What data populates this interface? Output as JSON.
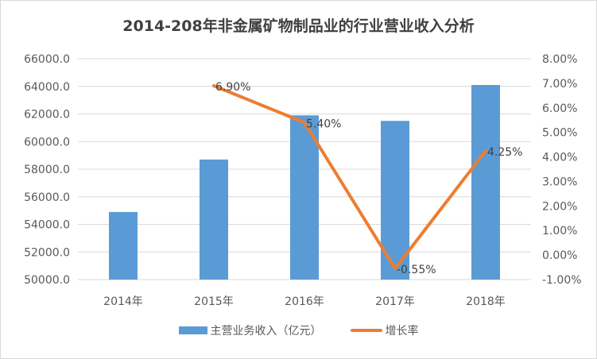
{
  "title": "2014-208年非金属矿物制品业的行业营业收入分析",
  "chart_data": {
    "type": "bar+line",
    "title": "2014-208年非金属矿物制品业的行业营业收入分析",
    "categories": [
      "2014年",
      "2015年",
      "2016年",
      "2017年",
      "2018年"
    ],
    "series": [
      {
        "name": "主营业务收入（亿元）",
        "type": "bar",
        "axis": "left",
        "color": "#5b9bd5",
        "values": [
          54900,
          58700,
          61900,
          61500,
          64100
        ]
      },
      {
        "name": "增长率",
        "type": "line",
        "axis": "right",
        "color": "#ed7d31",
        "values": [
          null,
          6.9,
          5.4,
          -0.55,
          4.25
        ],
        "labels": [
          "",
          "6.90%",
          "5.40%",
          "-0.55%",
          "4.25%"
        ]
      }
    ],
    "y_left": {
      "min": 50000,
      "max": 66000,
      "step": 2000,
      "ticks": [
        "66000.0",
        "64000.0",
        "62000.0",
        "60000.0",
        "58000.0",
        "56000.0",
        "54000.0",
        "52000.0",
        "50000.0"
      ]
    },
    "y_right": {
      "min": -1,
      "max": 8,
      "step": 1,
      "ticks": [
        "8.00%",
        "7.00%",
        "6.00%",
        "5.00%",
        "4.00%",
        "3.00%",
        "2.00%",
        "1.00%",
        "0.00%",
        "-1.00%"
      ]
    },
    "grid": true,
    "legend_position": "bottom"
  },
  "legend": {
    "bar_label": "主营业务收入（亿元）",
    "line_label": "增长率"
  }
}
